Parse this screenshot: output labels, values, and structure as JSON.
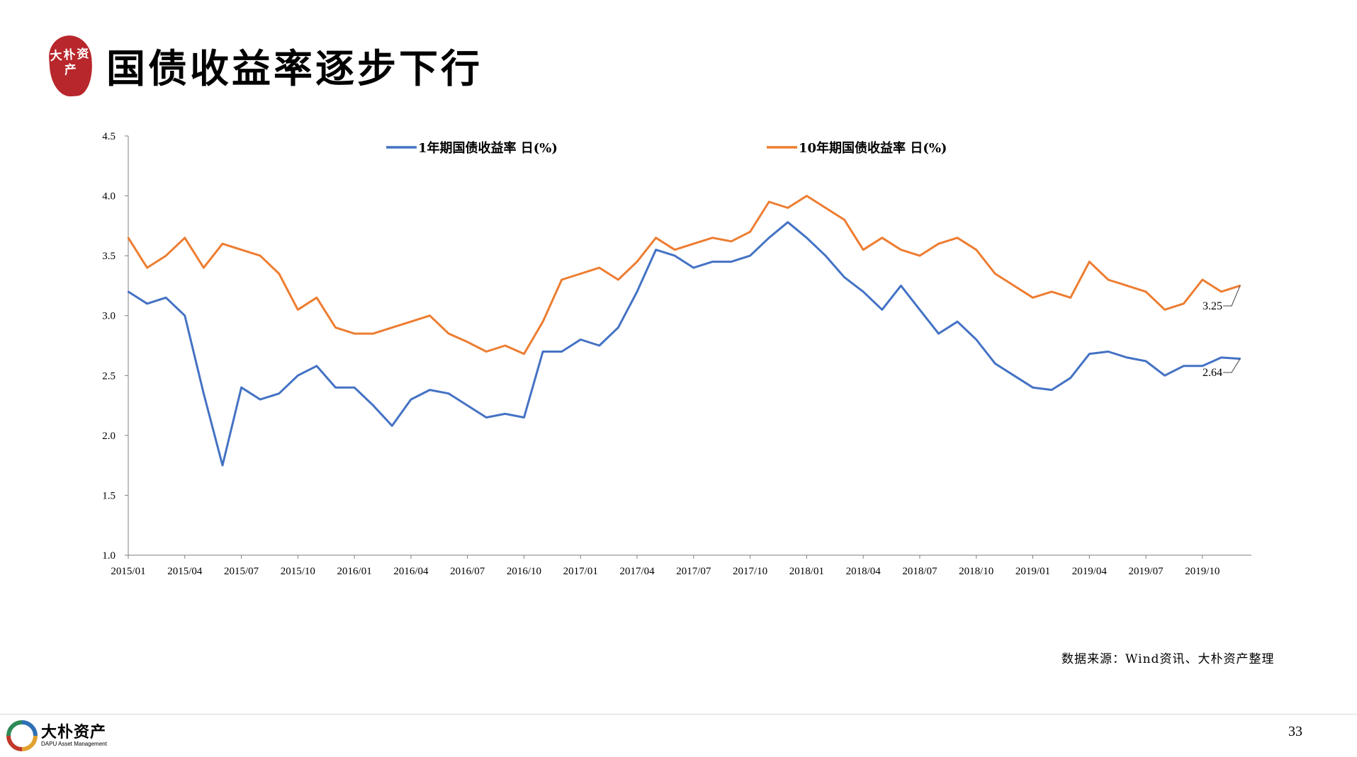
{
  "header": {
    "seal_text": "大朴资产",
    "title": "国债收益率逐步下行"
  },
  "chart_data": {
    "type": "line",
    "title": "",
    "xlabel": "",
    "ylabel": "",
    "ylim": [
      1.0,
      4.5
    ],
    "y_ticks": [
      "1.0",
      "1.5",
      "2.0",
      "2.5",
      "3.0",
      "3.5",
      "4.0",
      "4.5"
    ],
    "x_ticks": [
      "2015/01",
      "2015/04",
      "2015/07",
      "2015/10",
      "2016/01",
      "2016/04",
      "2016/07",
      "2016/10",
      "2017/01",
      "2017/04",
      "2017/07",
      "2017/10",
      "2018/01",
      "2018/04",
      "2018/07",
      "2018/10",
      "2019/01",
      "2019/04",
      "2019/07",
      "2019/10"
    ],
    "grid": false,
    "legend_position": "top",
    "series": [
      {
        "name": "1年期国债收益率 日(%)",
        "color": "#4472C4",
        "end_label": "2.64",
        "x": [
          "2015/01",
          "2015/02",
          "2015/03",
          "2015/04",
          "2015/05",
          "2015/06",
          "2015/07",
          "2015/08",
          "2015/09",
          "2015/10",
          "2015/11",
          "2015/12",
          "2016/01",
          "2016/02",
          "2016/03",
          "2016/04",
          "2016/05",
          "2016/06",
          "2016/07",
          "2016/08",
          "2016/09",
          "2016/10",
          "2016/11",
          "2016/12",
          "2017/01",
          "2017/02",
          "2017/03",
          "2017/04",
          "2017/05",
          "2017/06",
          "2017/07",
          "2017/08",
          "2017/09",
          "2017/10",
          "2017/11",
          "2017/12",
          "2018/01",
          "2018/02",
          "2018/03",
          "2018/04",
          "2018/05",
          "2018/06",
          "2018/07",
          "2018/08",
          "2018/09",
          "2018/10",
          "2018/11",
          "2018/12",
          "2019/01",
          "2019/02",
          "2019/03",
          "2019/04",
          "2019/05",
          "2019/06",
          "2019/07",
          "2019/08",
          "2019/09",
          "2019/10",
          "2019/11",
          "2019/12"
        ],
        "values": [
          3.2,
          3.1,
          3.15,
          3.0,
          2.35,
          1.75,
          2.4,
          2.3,
          2.35,
          2.5,
          2.58,
          2.4,
          2.4,
          2.25,
          2.08,
          2.3,
          2.38,
          2.35,
          2.25,
          2.15,
          2.18,
          2.15,
          2.7,
          2.7,
          2.8,
          2.75,
          2.9,
          3.2,
          3.55,
          3.5,
          3.4,
          3.45,
          3.45,
          3.5,
          3.65,
          3.78,
          3.65,
          3.5,
          3.32,
          3.2,
          3.05,
          3.25,
          3.05,
          2.85,
          2.95,
          2.8,
          2.6,
          2.5,
          2.4,
          2.38,
          2.48,
          2.68,
          2.7,
          2.65,
          2.62,
          2.5,
          2.58,
          2.58,
          2.65,
          2.64
        ]
      },
      {
        "name": "10年期国债收益率 日(%)",
        "color": "#ED7D31",
        "end_label": "3.25",
        "x": [
          "2015/01",
          "2015/02",
          "2015/03",
          "2015/04",
          "2015/05",
          "2015/06",
          "2015/07",
          "2015/08",
          "2015/09",
          "2015/10",
          "2015/11",
          "2015/12",
          "2016/01",
          "2016/02",
          "2016/03",
          "2016/04",
          "2016/05",
          "2016/06",
          "2016/07",
          "2016/08",
          "2016/09",
          "2016/10",
          "2016/11",
          "2016/12",
          "2017/01",
          "2017/02",
          "2017/03",
          "2017/04",
          "2017/05",
          "2017/06",
          "2017/07",
          "2017/08",
          "2017/09",
          "2017/10",
          "2017/11",
          "2017/12",
          "2018/01",
          "2018/02",
          "2018/03",
          "2018/04",
          "2018/05",
          "2018/06",
          "2018/07",
          "2018/08",
          "2018/09",
          "2018/10",
          "2018/11",
          "2018/12",
          "2019/01",
          "2019/02",
          "2019/03",
          "2019/04",
          "2019/05",
          "2019/06",
          "2019/07",
          "2019/08",
          "2019/09",
          "2019/10",
          "2019/11",
          "2019/12"
        ],
        "values": [
          3.65,
          3.4,
          3.5,
          3.65,
          3.4,
          3.6,
          3.55,
          3.5,
          3.35,
          3.05,
          3.15,
          2.9,
          2.85,
          2.85,
          2.9,
          2.95,
          3.0,
          2.85,
          2.78,
          2.7,
          2.75,
          2.68,
          2.95,
          3.3,
          3.35,
          3.4,
          3.3,
          3.45,
          3.65,
          3.55,
          3.6,
          3.65,
          3.62,
          3.7,
          3.95,
          3.9,
          4.0,
          3.9,
          3.8,
          3.55,
          3.65,
          3.55,
          3.5,
          3.6,
          3.65,
          3.55,
          3.35,
          3.25,
          3.15,
          3.2,
          3.15,
          3.45,
          3.3,
          3.25,
          3.2,
          3.05,
          3.1,
          3.3,
          3.2,
          3.25
        ]
      }
    ]
  },
  "source_note": "数据来源：Wind资讯、大朴资产整理",
  "footer": {
    "company_name": "大朴资产",
    "company_name_en": "DAPU Asset Management",
    "page_number": "33"
  }
}
